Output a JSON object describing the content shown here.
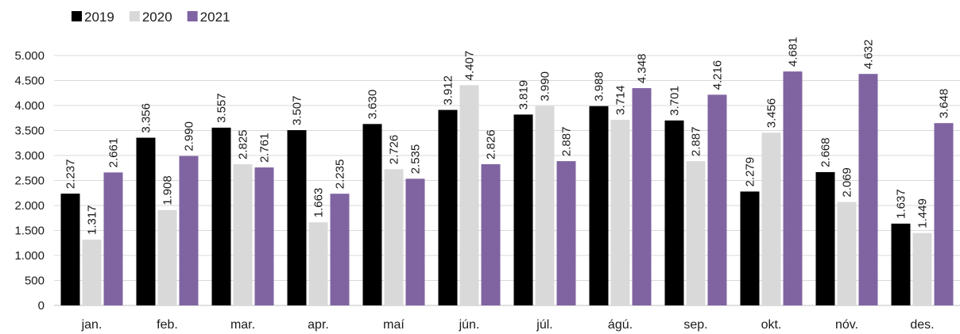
{
  "chart_data": {
    "type": "bar",
    "categories": [
      "jan.",
      "feb.",
      "mar.",
      "apr.",
      "maí",
      "jún.",
      "júl.",
      "ágú.",
      "sep.",
      "okt.",
      "nóv.",
      "des."
    ],
    "series": [
      {
        "name": "2019",
        "color": "#000000",
        "values": [
          2237,
          3356,
          3557,
          3507,
          3630,
          3912,
          3819,
          3988,
          3701,
          2279,
          2668,
          1637
        ],
        "labels": [
          "2.237",
          "3.356",
          "3.557",
          "3.507",
          "3.630",
          "3.912",
          "3.819",
          "3.988",
          "3.701",
          "2.279",
          "2.668",
          "1.637"
        ]
      },
      {
        "name": "2020",
        "color": "#d9d9d9",
        "values": [
          1317,
          1908,
          2825,
          1663,
          2726,
          4407,
          3990,
          3714,
          2887,
          3456,
          2069,
          1449
        ],
        "labels": [
          "1.317",
          "1.908",
          "2.825",
          "1.663",
          "2.726",
          "4.407",
          "3.990",
          "3.714",
          "2.887",
          "3.456",
          "2.069",
          "1.449"
        ]
      },
      {
        "name": "2021",
        "color": "#8064a2",
        "values": [
          2661,
          2990,
          2761,
          2235,
          2535,
          2826,
          2887,
          4348,
          4216,
          4681,
          4632,
          3648
        ],
        "labels": [
          "2.661",
          "2.990",
          "2.761",
          "2.235",
          "2.535",
          "2.826",
          "2.887",
          "4.348",
          "4.216",
          "4.681",
          "4.632",
          "3.648"
        ]
      }
    ],
    "ylim": [
      0,
      5000
    ],
    "yticks": [
      0,
      500,
      1000,
      1500,
      2000,
      2500,
      3000,
      3500,
      4000,
      4500,
      5000
    ],
    "ytick_labels": [
      "0",
      "500",
      "1.000",
      "1.500",
      "2.000",
      "2.500",
      "3.000",
      "3.500",
      "4.000",
      "4.500",
      "5.000"
    ],
    "grid": true,
    "legend": "top-left"
  }
}
